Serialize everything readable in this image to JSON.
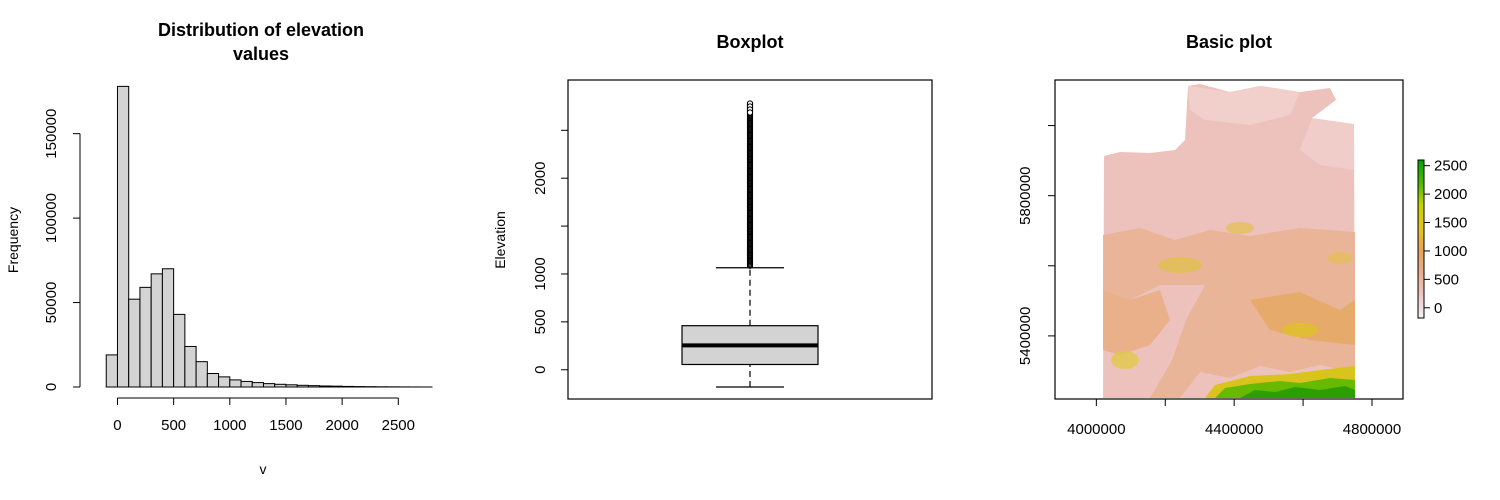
{
  "chart_data": [
    {
      "type": "bar",
      "title": "Distribution of elevation values",
      "title_lines": [
        "Distribution of elevation",
        "values"
      ],
      "xlabel": "v",
      "ylabel": "Frequency",
      "x_ticks": [
        0,
        500,
        1000,
        1500,
        2000,
        2500
      ],
      "y_ticks": [
        0,
        50000,
        100000,
        150000
      ],
      "xlim": [
        -200,
        2800
      ],
      "ylim": [
        0,
        180000
      ],
      "grid": false,
      "bin_width": 100,
      "bins": [
        {
          "start": -100,
          "end": 0,
          "count": 19000
        },
        {
          "start": 0,
          "end": 100,
          "count": 178000
        },
        {
          "start": 100,
          "end": 200,
          "count": 52000
        },
        {
          "start": 200,
          "end": 300,
          "count": 59000
        },
        {
          "start": 300,
          "end": 400,
          "count": 67000
        },
        {
          "start": 400,
          "end": 500,
          "count": 70000
        },
        {
          "start": 500,
          "end": 600,
          "count": 43000
        },
        {
          "start": 600,
          "end": 700,
          "count": 24000
        },
        {
          "start": 700,
          "end": 800,
          "count": 15000
        },
        {
          "start": 800,
          "end": 900,
          "count": 8000
        },
        {
          "start": 900,
          "end": 1000,
          "count": 6000
        },
        {
          "start": 1000,
          "end": 1100,
          "count": 4200
        },
        {
          "start": 1100,
          "end": 1200,
          "count": 3300
        },
        {
          "start": 1200,
          "end": 1300,
          "count": 2600
        },
        {
          "start": 1300,
          "end": 1400,
          "count": 2000
        },
        {
          "start": 1400,
          "end": 1500,
          "count": 1600
        },
        {
          "start": 1500,
          "end": 1600,
          "count": 1300
        },
        {
          "start": 1600,
          "end": 1700,
          "count": 1000
        },
        {
          "start": 1700,
          "end": 1800,
          "count": 800
        },
        {
          "start": 1800,
          "end": 1900,
          "count": 600
        },
        {
          "start": 1900,
          "end": 2000,
          "count": 500
        },
        {
          "start": 2000,
          "end": 2100,
          "count": 350
        },
        {
          "start": 2100,
          "end": 2200,
          "count": 250
        },
        {
          "start": 2200,
          "end": 2300,
          "count": 180
        },
        {
          "start": 2300,
          "end": 2400,
          "count": 120
        },
        {
          "start": 2400,
          "end": 2500,
          "count": 80
        },
        {
          "start": 2500,
          "end": 2600,
          "count": 50
        },
        {
          "start": 2600,
          "end": 2700,
          "count": 30
        },
        {
          "start": 2700,
          "end": 2800,
          "count": 15
        }
      ],
      "bar_color": "#d3d3d3"
    },
    {
      "type": "boxplot",
      "title": "Boxplot",
      "ylabel": "Elevation",
      "y_ticks": [
        0,
        500,
        1000,
        2000
      ],
      "ylim": [
        -180,
        2900
      ],
      "grid": false,
      "stats": {
        "lower_whisker": -180,
        "q1": 55,
        "median": 255,
        "q3": 460,
        "upper_whisker": 1065,
        "max_outlier": 2780
      },
      "box_color": "#d3d3d3"
    },
    {
      "type": "heatmap",
      "title": "Basic plot",
      "x_ticks": [
        4000000,
        4400000,
        4800000
      ],
      "y_ticks": [
        5400000,
        5800000
      ],
      "xlim": [
        3880000,
        4890000
      ],
      "ylim": [
        5220000,
        6130000
      ],
      "legend": {
        "placement": "right",
        "ticks": [
          0,
          500,
          1000,
          1500,
          2000,
          2500
        ],
        "range": [
          -180,
          2600
        ],
        "colors": [
          "#f2f2f2",
          "#efc8c3",
          "#e7ae8c",
          "#e7a35c",
          "#e6c31a",
          "#c4d400",
          "#4cb800",
          "#00a600"
        ]
      }
    }
  ]
}
